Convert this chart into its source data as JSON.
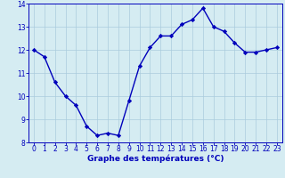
{
  "hours": [
    0,
    1,
    2,
    3,
    4,
    5,
    6,
    7,
    8,
    9,
    10,
    11,
    12,
    13,
    14,
    15,
    16,
    17,
    18,
    19,
    20,
    21,
    22,
    23
  ],
  "temperatures": [
    12.0,
    11.7,
    10.6,
    10.0,
    9.6,
    8.7,
    8.3,
    8.4,
    8.3,
    9.8,
    11.3,
    12.1,
    12.6,
    12.6,
    13.1,
    13.3,
    13.8,
    13.0,
    12.8,
    12.3,
    11.9,
    11.9,
    12.0,
    12.1
  ],
  "line_color": "#0000bb",
  "marker": "D",
  "marker_size": 2.2,
  "bg_color": "#d5ecf2",
  "grid_color": "#aaccdd",
  "xlabel": "Graphe des températures (°C)",
  "tick_label_color": "#0000bb",
  "ylim": [
    8,
    14
  ],
  "yticks": [
    8,
    9,
    10,
    11,
    12,
    13,
    14
  ],
  "xlim_min": -0.5,
  "xlim_max": 23.5,
  "xticks": [
    0,
    1,
    2,
    3,
    4,
    5,
    6,
    7,
    8,
    9,
    10,
    11,
    12,
    13,
    14,
    15,
    16,
    17,
    18,
    19,
    20,
    21,
    22,
    23
  ],
  "spine_color": "#0000bb",
  "linewidth": 1.0,
  "xlabel_fontsize": 6.5,
  "tick_fontsize": 5.5
}
